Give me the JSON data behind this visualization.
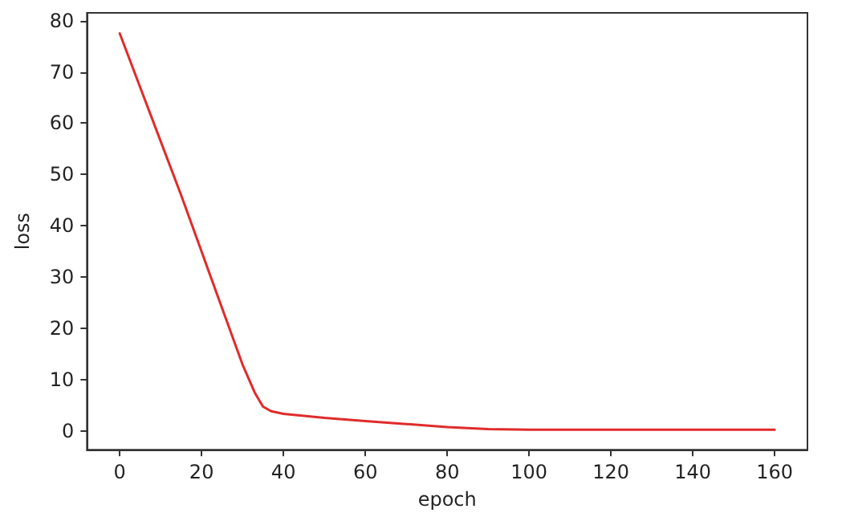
{
  "chart_data": {
    "type": "line",
    "xlabel": "epoch",
    "ylabel": "loss",
    "series": [
      {
        "color": "#e02b2b",
        "x": [
          0,
          5,
          10,
          15,
          20,
          25,
          30,
          33,
          35,
          37,
          40,
          45,
          50,
          60,
          70,
          80,
          90,
          100,
          120,
          140,
          160
        ],
        "values": [
          77.5,
          67,
          56.5,
          46,
          35,
          24,
          13,
          7.5,
          4.8,
          3.9,
          3.4,
          3,
          2.6,
          2,
          1.4,
          0.8,
          0.4,
          0.3,
          0.3,
          0.3,
          0.3
        ]
      }
    ],
    "xlim": [
      -8,
      168
    ],
    "xticks": [
      0,
      20,
      40,
      60,
      80,
      100,
      120,
      140,
      160
    ],
    "ylim": [
      -3.6,
      81.5
    ],
    "yticks": [
      0,
      10,
      20,
      30,
      40,
      50,
      60,
      70,
      80
    ],
    "marker": "none",
    "line_style": "solid"
  }
}
